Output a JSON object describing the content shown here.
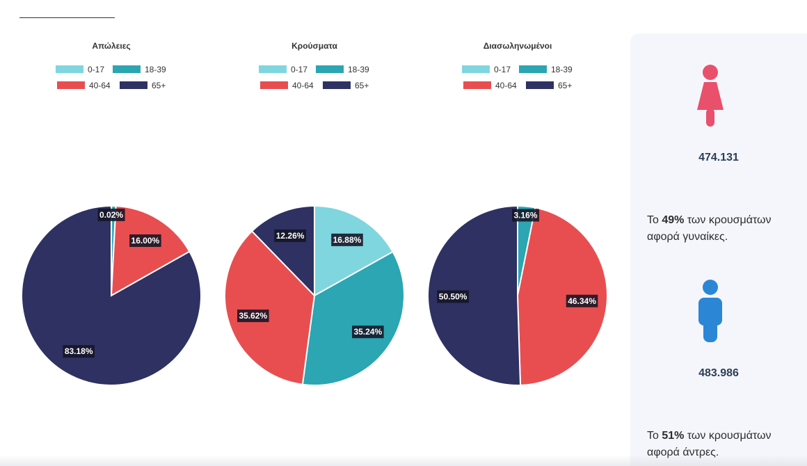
{
  "chart_data": [
    {
      "type": "pie",
      "title": "Απώλειες",
      "categories": [
        "0-17",
        "18-39",
        "40-64",
        "65+"
      ],
      "values": [
        0.02,
        0.8,
        16.0,
        83.18
      ],
      "value_labels": [
        "0.02%",
        "",
        "16.00%",
        "83.18%"
      ]
    },
    {
      "type": "pie",
      "title": "Κρούσματα",
      "categories": [
        "0-17",
        "18-39",
        "40-64",
        "65+"
      ],
      "values": [
        16.88,
        35.24,
        35.62,
        12.26
      ],
      "value_labels": [
        "16.88%",
        "35.24%",
        "35.62%",
        "12.26%"
      ]
    },
    {
      "type": "pie",
      "title": "Διασωληνωμένοι",
      "categories": [
        "0-17",
        "18-39",
        "40-64",
        "65+"
      ],
      "values": [
        0.0,
        3.16,
        46.34,
        50.5
      ],
      "value_labels": [
        "",
        "3.16%",
        "46.34%",
        "50.50%"
      ]
    }
  ],
  "legend": {
    "labels": [
      "0-17",
      "18-39",
      "40-64",
      "65+"
    ],
    "colors": [
      "#7fd6df",
      "#2ba6b2",
      "#e84e50",
      "#2e3162"
    ]
  },
  "sidebar": {
    "women": {
      "icon": "female-icon",
      "color": "#e9506b",
      "count": "474.131",
      "text_prefix": "Το ",
      "percent": "49%",
      "text_suffix": " των κρουσμάτων αφορά γυναίκες."
    },
    "men": {
      "icon": "male-icon",
      "color": "#2c86d6",
      "count": "483.986",
      "text_prefix": "Το ",
      "percent": "51%",
      "text_suffix": " των κρουσμάτων αφορά άντρες."
    }
  }
}
